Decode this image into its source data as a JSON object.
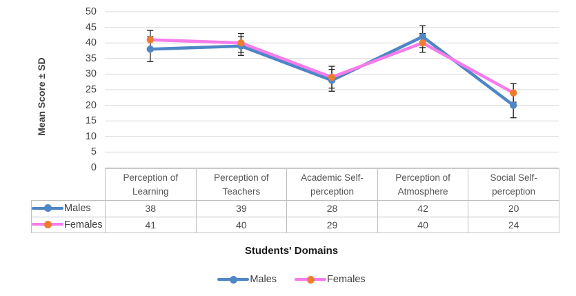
{
  "chart_data": {
    "type": "line",
    "title": "",
    "xlabel": "Students' Domains",
    "ylabel": "Mean Score ± SD",
    "ylim": [
      0,
      50
    ],
    "yticks": [
      0,
      5,
      10,
      15,
      20,
      25,
      30,
      35,
      40,
      45,
      50
    ],
    "grid": true,
    "legend_position": "bottom",
    "error_bars": true,
    "error_bar_color": "#2b2b2b",
    "gridline_color": "#d9d9d9",
    "categories": [
      "Perception of Learning",
      "Perception of Teachers",
      "Academic Self-perception",
      "Perception of Atmosphere",
      "Social Self-perception"
    ],
    "series": [
      {
        "name": "Males",
        "line_color": "#4e86c6",
        "marker_color": "#4e86c6",
        "values": [
          38,
          39,
          28,
          42,
          20
        ],
        "sd_est": [
          4,
          3,
          3.5,
          3.5,
          4
        ]
      },
      {
        "name": "Females",
        "line_color": "#f57cea",
        "marker_color": "#ed7d31",
        "values": [
          41,
          40,
          29,
          40,
          24
        ],
        "sd_est": [
          3,
          3,
          3.5,
          3,
          3
        ]
      }
    ]
  }
}
